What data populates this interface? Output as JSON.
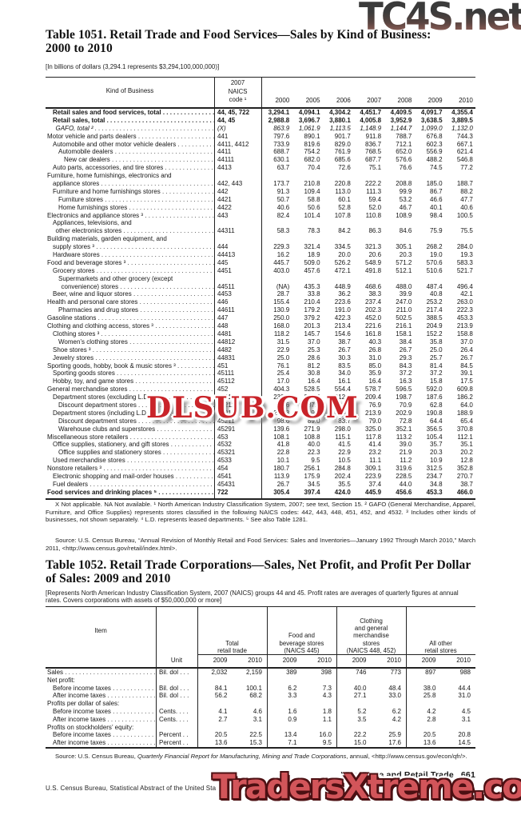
{
  "watermarks": {
    "top": "TC4S.net",
    "middle": "DLSUB.COM",
    "bottom": "TradersXtreme.com"
  },
  "colors": {
    "watermark_red": "#c9242a",
    "traders_fill": "#d2555a",
    "tc4s_gradient_top": "#353535",
    "tc4s_gradient_bottom": "#996159",
    "text": "#161616"
  },
  "table1051": {
    "title_lines": [
      "Table 1051. Retail Trade and Food Services—Sales by Kind of Business:",
      "2000 to 2010"
    ],
    "note": "[In billions of dollars (3,294.1 represents $3,294,100,000,000)]",
    "col_head_label": "Kind of Business",
    "col_head_code": "2007 NAICS code ¹",
    "years": [
      "2000",
      "2005",
      "2006",
      "2007",
      "2008",
      "2009",
      "2010"
    ],
    "rows": [
      {
        "l": "Retail sales and food services, total",
        "i": 1,
        "c": "44, 45, 722",
        "s": "b",
        "v": [
          "3,294.1",
          "4,094.1",
          "4,304.2",
          "4,451.7",
          "4,409.5",
          "4,091.7",
          "4,355.4"
        ]
      },
      {
        "l": "Retail sales, total",
        "i": 1,
        "c": "44, 45",
        "s": "b",
        "v": [
          "2,988.8",
          "3,696.7",
          "3,880.1",
          "4,005.8",
          "3,952.9",
          "3,638.5",
          "3,889.5"
        ]
      },
      {
        "l": "GAFO, total ²",
        "i": 1.5,
        "c": "(X)",
        "s": "i",
        "v": [
          "863.9",
          "1,061.9",
          "1,113.5",
          "1,148.9",
          "1,144.7",
          "1,099.0",
          "1,132.0"
        ]
      },
      {
        "l": "Motor vehicle and parts dealers",
        "i": 0,
        "c": "441",
        "v": [
          "797.6",
          "890.1",
          "901.7",
          "911.8",
          "788.7",
          "676.8",
          "744.3"
        ]
      },
      {
        "l": "Automobile and other motor vehicle dealers",
        "i": 1,
        "c": "4411, 4412",
        "v": [
          "733.9",
          "819.6",
          "829.0",
          "836.7",
          "712.1",
          "602.3",
          "667.1"
        ]
      },
      {
        "l": "Automobile dealers",
        "i": 2,
        "c": "4411",
        "v": [
          "688.7",
          "754.2",
          "761.9",
          "768.5",
          "652.0",
          "556.9",
          "621.4"
        ]
      },
      {
        "l": "New car dealers",
        "i": 3,
        "c": "44111",
        "v": [
          "630.1",
          "682.0",
          "685.6",
          "687.7",
          "576.6",
          "488.2",
          "546.8"
        ]
      },
      {
        "l": "Auto parts, accessories, and tire stores",
        "i": 1,
        "c": "4413",
        "v": [
          "63.7",
          "70.4",
          "72.6",
          "75.1",
          "76.6",
          "74.5",
          "77.2"
        ]
      },
      {
        "l": "Furniture, home furnishings, electronics and",
        "l2": "appliance stores",
        "i": 0,
        "i2": 1,
        "c": "442, 443",
        "v": [
          "173.7",
          "210.8",
          "220.8",
          "222.2",
          "208.8",
          "185.0",
          "188.7"
        ]
      },
      {
        "l": "Furniture and home furnishings stores",
        "i": 1,
        "c": "442",
        "v": [
          "91.3",
          "109.4",
          "113.0",
          "111.3",
          "99.9",
          "86.7",
          "88.2"
        ]
      },
      {
        "l": "Furniture stores",
        "i": 2,
        "c": "4421",
        "v": [
          "50.7",
          "58.8",
          "60.1",
          "59.4",
          "53.2",
          "46.6",
          "47.7"
        ]
      },
      {
        "l": "Home furnishings stores",
        "i": 2,
        "c": "4422",
        "v": [
          "40.6",
          "50.6",
          "52.8",
          "52.0",
          "46.7",
          "40.1",
          "40.6"
        ]
      },
      {
        "l": "Electronics and appliance stores ³",
        "i": 0,
        "c": "443",
        "v": [
          "82.4",
          "101.4",
          "107.8",
          "110.8",
          "108.9",
          "98.4",
          "100.5"
        ]
      },
      {
        "l": "Appliances, televisions, and",
        "l2": "other electronics stores",
        "i": 1,
        "i2": 1.5,
        "c": "44311",
        "v": [
          "58.3",
          "78.3",
          "84.2",
          "86.3",
          "84.6",
          "75.9",
          "75.5"
        ]
      },
      {
        "l": "Building materials, garden equipment, and",
        "l2": "supply stores ³",
        "i": 0,
        "i2": 1,
        "c": "444",
        "v": [
          "229.3",
          "321.4",
          "334.5",
          "321.3",
          "305.1",
          "268.2",
          "284.0"
        ]
      },
      {
        "l": "Hardware stores",
        "i": 1,
        "c": "44413",
        "v": [
          "16.2",
          "18.9",
          "20.0",
          "20.6",
          "20.3",
          "19.0",
          "19.3"
        ]
      },
      {
        "l": "Food and beverage stores ³",
        "i": 0,
        "c": "445",
        "v": [
          "445.7",
          "509.0",
          "526.2",
          "548.9",
          "571.2",
          "570.6",
          "583.3"
        ]
      },
      {
        "l": "Grocery stores",
        "i": 1,
        "c": "4451",
        "v": [
          "403.0",
          "457.6",
          "472.1",
          "491.8",
          "512.1",
          "510.6",
          "521.7"
        ]
      },
      {
        "l": "Supermarkets and other grocery (except",
        "l2": "convenience) stores",
        "i": 2,
        "i2": 2.5,
        "c": "44511",
        "v": [
          "(NA)",
          "435.3",
          "448.9",
          "468.6",
          "488.0",
          "487.4",
          "496.4"
        ]
      },
      {
        "l": "Beer, wine and liquor stores",
        "i": 1,
        "c": "4453",
        "v": [
          "28.7",
          "33.8",
          "36.2",
          "38.3",
          "39.9",
          "40.8",
          "42.1"
        ]
      },
      {
        "l": "Health and personal care stores",
        "i": 0,
        "c": "446",
        "v": [
          "155.4",
          "210.4",
          "223.6",
          "237.4",
          "247.0",
          "253.2",
          "263.0"
        ]
      },
      {
        "l": "Pharmacies and drug stores",
        "i": 2,
        "c": "44611",
        "v": [
          "130.9",
          "179.2",
          "191.0",
          "202.3",
          "211.0",
          "217.4",
          "222.3"
        ]
      },
      {
        "l": "Gasoline stations",
        "i": 0,
        "c": "447",
        "v": [
          "250.0",
          "379.2",
          "422.3",
          "452.0",
          "502.5",
          "388.5",
          "453.3"
        ]
      },
      {
        "l": "Clothing and clothing access, stores ³",
        "i": 0,
        "c": "448",
        "v": [
          "168.0",
          "201.3",
          "213.4",
          "221.6",
          "216.1",
          "204.9",
          "213.9"
        ]
      },
      {
        "l": "Clothing stores ³",
        "i": 1,
        "c": "4481",
        "v": [
          "118.2",
          "145.7",
          "154.6",
          "161.8",
          "158.1",
          "152.2",
          "158.8"
        ]
      },
      {
        "l": "Women’s clothing stores",
        "i": 2,
        "c": "44812",
        "v": [
          "31.5",
          "37.0",
          "38.7",
          "40.3",
          "38.4",
          "35.8",
          "37.0"
        ]
      },
      {
        "l": "Shoe stores ³",
        "i": 1,
        "c": "4482",
        "v": [
          "22.9",
          "25.3",
          "26.7",
          "26.8",
          "26.7",
          "25.0",
          "26.4"
        ]
      },
      {
        "l": "Jewelry stores",
        "i": 1,
        "c": "44831",
        "v": [
          "25.0",
          "28.6",
          "30.3",
          "31.0",
          "29.3",
          "25.7",
          "26.7"
        ]
      },
      {
        "l": "Sporting goods, hobby, book & music stores ³",
        "i": 0,
        "c": "451",
        "v": [
          "76.1",
          "81.2",
          "83.5",
          "85.0",
          "84.3",
          "81.4",
          "84.5"
        ]
      },
      {
        "l": "Sporting goods stores",
        "i": 1,
        "c": "45111",
        "v": [
          "25.4",
          "30.8",
          "34.0",
          "35.9",
          "37.2",
          "37.2",
          "39.1"
        ]
      },
      {
        "l": "Hobby, toy, and game stores",
        "i": 1,
        "c": "45112",
        "v": [
          "17.0",
          "16.4",
          "16.1",
          "16.4",
          "16.3",
          "15.8",
          "17.5"
        ]
      },
      {
        "l": "General merchandise stores",
        "i": 0,
        "c": "452",
        "v": [
          "404.3",
          "528.5",
          "554.4",
          "578.7",
          "596.5",
          "592.0",
          "609.8"
        ]
      },
      {
        "l": "Department stores (excluding L.D.) ⁴",
        "i": 1,
        "c": "4521",
        "v": [
          "232.5",
          "215.3",
          "212.3",
          "209.4",
          "198.7",
          "187.6",
          "186.2"
        ]
      },
      {
        "l": "Discount department stores",
        "i": 2,
        "c": "45211",
        "v": [
          "96.6",
          "87.0",
          "81.8",
          "76.9",
          "70.9",
          "62.8",
          "64.0"
        ]
      },
      {
        "l": "Department stores (including L.D.)",
        "i": 1,
        "c": "4521",
        "v": [
          "238.3",
          "219.5",
          "216.4",
          "213.9",
          "202.9",
          "190.8",
          "188.9"
        ]
      },
      {
        "l": "Discount department stores",
        "i": 2,
        "c": "45211",
        "v": [
          "98.6",
          "89.0",
          "83.7",
          "79.0",
          "72.8",
          "64.4",
          "65.4"
        ]
      },
      {
        "l": "Warehouse clubs and superstores",
        "i": 2,
        "c": "45291",
        "v": [
          "139.6",
          "271.9",
          "298.0",
          "325.0",
          "352.1",
          "356.5",
          "370.8"
        ]
      },
      {
        "l": "Miscellaneous store retailers",
        "i": 0,
        "c": "453",
        "v": [
          "108.1",
          "108.8",
          "115.1",
          "117.8",
          "113.2",
          "105.4",
          "112.1"
        ]
      },
      {
        "l": "Office supplies, stationery, and gift stores",
        "i": 1,
        "c": "4532",
        "v": [
          "41.8",
          "40.0",
          "41.5",
          "41.4",
          "39.0",
          "35.7",
          "35.1"
        ]
      },
      {
        "l": "Office supplies and stationery stores",
        "i": 2,
        "c": "45321",
        "v": [
          "22.8",
          "22.3",
          "22.9",
          "23.2",
          "21.9",
          "20.3",
          "20.2"
        ]
      },
      {
        "l": "Used merchandise stores",
        "i": 1,
        "c": "4533",
        "v": [
          "10.1",
          "9.5",
          "10.5",
          "11.1",
          "11.2",
          "10.9",
          "12.8"
        ]
      },
      {
        "l": "Nonstore retailers ³",
        "i": 0,
        "c": "454",
        "v": [
          "180.7",
          "256.1",
          "284.8",
          "309.1",
          "319.6",
          "312.5",
          "352.8"
        ]
      },
      {
        "l": "Electronic shopping and mail-order houses",
        "i": 1,
        "c": "4541",
        "v": [
          "113.9",
          "175.9",
          "202.4",
          "223.9",
          "228.5",
          "234.7",
          "270.7"
        ]
      },
      {
        "l": "Fuel dealers",
        "i": 1,
        "c": "45431",
        "v": [
          "26.7",
          "34.5",
          "35.5",
          "37.4",
          "44.0",
          "34.8",
          "38.7"
        ]
      },
      {
        "l": "Food services and drinking places ⁵",
        "i": 0,
        "c": "722",
        "s": "b",
        "v": [
          "305.4",
          "397.4",
          "424.0",
          "445.9",
          "456.6",
          "453.3",
          "466.0"
        ]
      }
    ],
    "footnote": "X Not applicable. NA Not available.  ¹ North American Industry Classification System, 2007; see text, Section 15. ² GAFO (General Merchandise, Apparel, Furniture, and Office Supplies) represents stores classified in the following NAICS codes: 442, 443, 448, 451, 452, and 4532. ³ Includes other kinds of businesses, not shown separately. ⁴ L.D. represents leased departments. ⁵ See also Table 1281.",
    "source": "Source: U.S. Census Bureau, “Annual Revision of Monthly Retail and Food Services: Sales and Inventories—January 1992 Through March 2010,” March 2011, <http://www.census.gov/retail/index.html>."
  },
  "table1052": {
    "title_lines": [
      "Table 1052. Retail Trade Corporations—Sales, Net Profit, and Profit Per Dollar",
      "of Sales: 2009 and 2010"
    ],
    "note": "[Represents North American Industry Classification System, 2007 (NAICS) groups 44 and 45. Profit rates are averages of quarterly figures at annual rates. Covers corporations with assets of $50,000,000 or more]",
    "item_head": "Item",
    "unit_head": "Unit",
    "groups": [
      {
        "lines": [
          "Total",
          "retail trade"
        ]
      },
      {
        "lines": [
          "Food and",
          "beverage stores",
          "(NAICS 445)"
        ]
      },
      {
        "lines": [
          "Clothing",
          "and general",
          "merchandise",
          "stores",
          "(NAICS 448, 452)"
        ]
      },
      {
        "lines": [
          "All other",
          "retail stores"
        ]
      }
    ],
    "years": [
      "2009",
      "2010"
    ],
    "rows": [
      {
        "label": "Sales",
        "unit": "Bil. dol . . .",
        "ind": 0,
        "vals": [
          "2,032",
          "2,159",
          "389",
          "398",
          "746",
          "773",
          "897",
          "988"
        ]
      },
      {
        "label": "Net profit:",
        "ind": 0
      },
      {
        "label": "Before income taxes",
        "unit": "Bil. dol . . .",
        "ind": 1,
        "vals": [
          "84.1",
          "100.1",
          "6.2",
          "7.3",
          "40.0",
          "48.4",
          "38.0",
          "44.4"
        ]
      },
      {
        "label": "After income taxes",
        "unit": "Bil. dol . . .",
        "ind": 1,
        "vals": [
          "56.2",
          "68.2",
          "3.3",
          "4.3",
          "27.1",
          "33.0",
          "25.8",
          "31.0"
        ]
      },
      {
        "label": "Profits per dollar of sales:",
        "ind": 0
      },
      {
        "label": "Before income taxes",
        "unit": "Cents. . . .",
        "ind": 1,
        "vals": [
          "4.1",
          "4.6",
          "1.6",
          "1.8",
          "5.2",
          "6.2",
          "4.2",
          "4.5"
        ]
      },
      {
        "label": "After income taxes",
        "unit": "Cents. . . .",
        "ind": 1,
        "vals": [
          "2.7",
          "3.1",
          "0.9",
          "1.1",
          "3.5",
          "4.2",
          "2.8",
          "3.1"
        ]
      },
      {
        "label": "Profits on stockholders’ equity:",
        "ind": 0
      },
      {
        "label": "Before income taxes",
        "unit": "Percent . .",
        "ind": 1,
        "vals": [
          "20.5",
          "22.5",
          "13.4",
          "16.0",
          "22.2",
          "25.9",
          "20.5",
          "20.8"
        ]
      },
      {
        "label": "After income taxes",
        "unit": "Percent . .",
        "ind": 1,
        "vals": [
          "13.6",
          "15.3",
          "7.1",
          "9.5",
          "15.0",
          "17.6",
          "13.6",
          "14.5"
        ]
      }
    ],
    "source_prefix": "Source: U.S. Census Bureau, ",
    "source_italic": "Quarterly Financial Report for Manufacturing, Mining and Trade Corporations",
    "source_suffix": ", annual, <http://www.census.gov/econ/qfr/>."
  },
  "footer": {
    "running_head": "Wholesale and Retail Trade",
    "page_number": "661",
    "credit": "U.S. Census Bureau, Statistical Abstract of the United States: 2012"
  }
}
